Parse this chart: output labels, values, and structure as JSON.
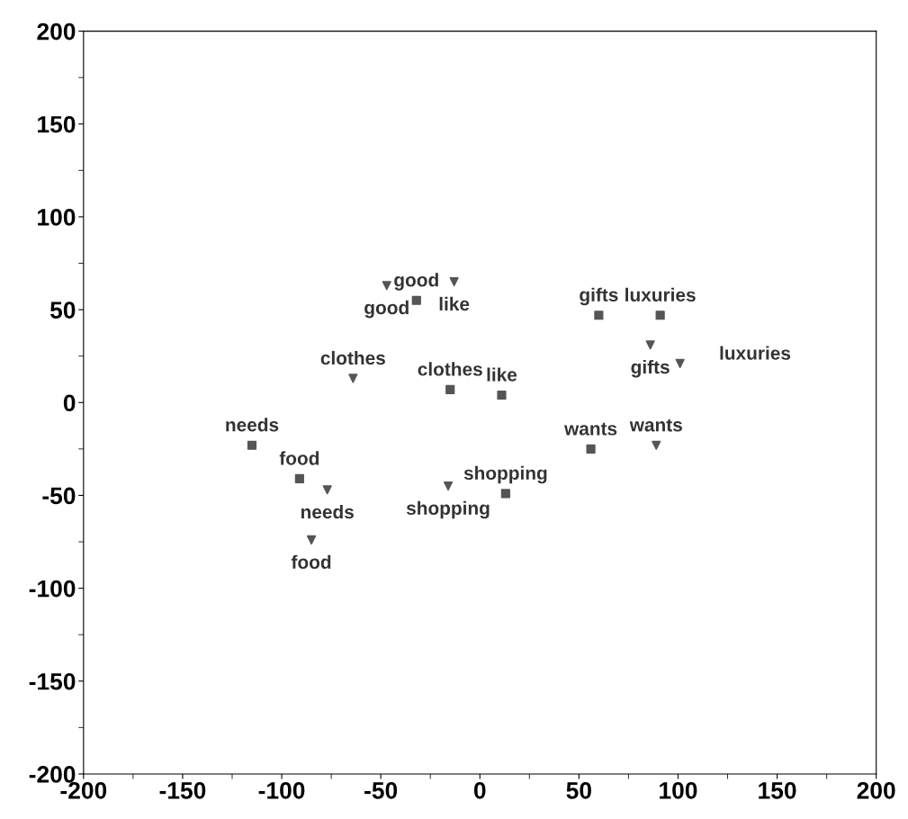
{
  "chart_data": {
    "type": "scatter",
    "xlim": [
      -200,
      200
    ],
    "ylim": [
      -200,
      200
    ],
    "xticks": [
      -200,
      -150,
      -100,
      -50,
      0,
      50,
      100,
      150,
      200
    ],
    "yticks": [
      -200,
      -150,
      -100,
      -50,
      0,
      50,
      100,
      150,
      200
    ],
    "grid": false,
    "legend": false,
    "series": [
      {
        "color": "#555555",
        "marker": "square",
        "x": [
          -115,
          -91,
          -32,
          -15,
          11,
          13,
          60,
          91,
          56
        ],
        "values": [
          -23,
          -41,
          55,
          7,
          4,
          -49,
          47,
          47,
          -25
        ]
      },
      {
        "color": "#555555",
        "marker": "triangle",
        "x": [
          -77,
          -85,
          -47,
          -13,
          -64,
          -16,
          86,
          101,
          89
        ],
        "values": [
          -47,
          -74,
          63,
          65,
          13,
          -45,
          31,
          21,
          -23
        ]
      }
    ],
    "annotations": [
      {
        "text": "needs",
        "x": -115,
        "y": -23
      },
      {
        "text": "food",
        "x": -91,
        "y": -41
      },
      {
        "text": "good",
        "x": -32,
        "y": 55
      },
      {
        "text": "clothes",
        "x": -15,
        "y": 7
      },
      {
        "text": "like",
        "x": 11,
        "y": 4
      },
      {
        "text": "shopping",
        "x": 13,
        "y": -49
      },
      {
        "text": "gifts",
        "x": 60,
        "y": 47
      },
      {
        "text": "luxuries",
        "x": 91,
        "y": 47
      },
      {
        "text": "wants",
        "x": 56,
        "y": -25
      },
      {
        "text": "needs",
        "x": -77,
        "y": -47
      },
      {
        "text": "food",
        "x": -85,
        "y": -74
      },
      {
        "text": "good",
        "x": -47,
        "y": 63
      },
      {
        "text": "like",
        "x": -13,
        "y": 65
      },
      {
        "text": "clothes",
        "x": -64,
        "y": 13
      },
      {
        "text": "shopping",
        "x": -16,
        "y": -45
      },
      {
        "text": "gifts",
        "x": 86,
        "y": 31
      },
      {
        "text": "luxuries",
        "x": 101,
        "y": 21
      },
      {
        "text": "wants",
        "x": 89,
        "y": -23
      }
    ]
  }
}
